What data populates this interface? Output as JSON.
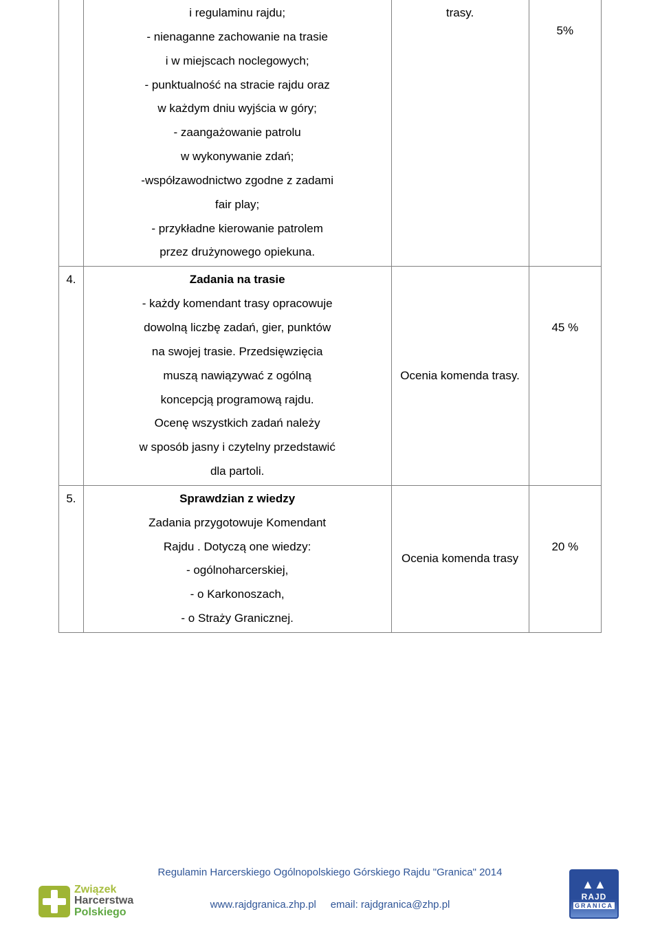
{
  "rows": [
    {
      "num": "",
      "desc_lines": [
        {
          "text": "i regulaminu rajdu;",
          "bold": false
        },
        {
          "text": "- nienaganne zachowanie na trasie",
          "bold": false
        },
        {
          "text": "i w miejscach noclegowych;",
          "bold": false
        },
        {
          "text": "- punktualność na stracie rajdu oraz",
          "bold": false
        },
        {
          "text": "w każdym dniu wyjścia w góry;",
          "bold": false
        },
        {
          "text": "- zaangażowanie patrolu",
          "bold": false
        },
        {
          "text": "w wykonywanie zdań;",
          "bold": false
        },
        {
          "text": "-współzawodnictwo zgodne z zadami",
          "bold": false
        },
        {
          "text": "fair play;",
          "bold": false
        },
        {
          "text": "- przykładne kierowanie patrolem",
          "bold": false
        },
        {
          "text": "przez drużynowego opiekuna.",
          "bold": false
        }
      ],
      "eval": "trasy.",
      "pct": "5%"
    },
    {
      "num": "4.",
      "desc_lines": [
        {
          "text": "Zadania na trasie",
          "bold": true
        },
        {
          "text": "- każdy komendant trasy opracowuje",
          "bold": false
        },
        {
          "text": "dowolną liczbę zadań, gier, punktów",
          "bold": false
        },
        {
          "text": "na swojej trasie. Przedsięwzięcia",
          "bold": false
        },
        {
          "text": "muszą nawiązywać z ogólną",
          "bold": false
        },
        {
          "text": "koncepcją programową rajdu.",
          "bold": false
        },
        {
          "text": "Ocenę wszystkich zadań należy",
          "bold": false
        },
        {
          "text": "w sposób jasny i czytelny przedstawić",
          "bold": false
        },
        {
          "text": "dla partoli.",
          "bold": false
        }
      ],
      "eval": "Ocenia komenda trasy.",
      "pct": "45 %"
    },
    {
      "num": "5.",
      "desc_lines": [
        {
          "text": "Sprawdzian z wiedzy",
          "bold": true
        },
        {
          "text": "Zadania przygotowuje Komendant",
          "bold": false
        },
        {
          "text": "Rajdu . Dotyczą one wiedzy:",
          "bold": false
        },
        {
          "text": "- ogólnoharcerskiej,",
          "bold": false
        },
        {
          "text": "- o Karkonoszach,",
          "bold": false
        },
        {
          "text": "- o Straży Granicznej.",
          "bold": false
        }
      ],
      "eval": "Ocenia komenda trasy",
      "pct": "20 %"
    }
  ],
  "footer": {
    "title": "Regulamin Harcerskiego Ogólnopolskiego Górskiego Rajdu \"Granica\" 2014",
    "website": "www.rajdgranica.zhp.pl",
    "email_label": "email:",
    "email": "rajdgranica@zhp.pl"
  },
  "logo_left": {
    "line1": "Związek",
    "line2": "Harcerstwa",
    "line3": "Polskiego"
  },
  "logo_right": {
    "line1": "RAJD",
    "line2": "GRANICA"
  },
  "colors": {
    "border": "#808080",
    "footer_text": "#2f5597",
    "zhp_green": "#9fb534",
    "rajd_blue": "#2a4d9b"
  }
}
